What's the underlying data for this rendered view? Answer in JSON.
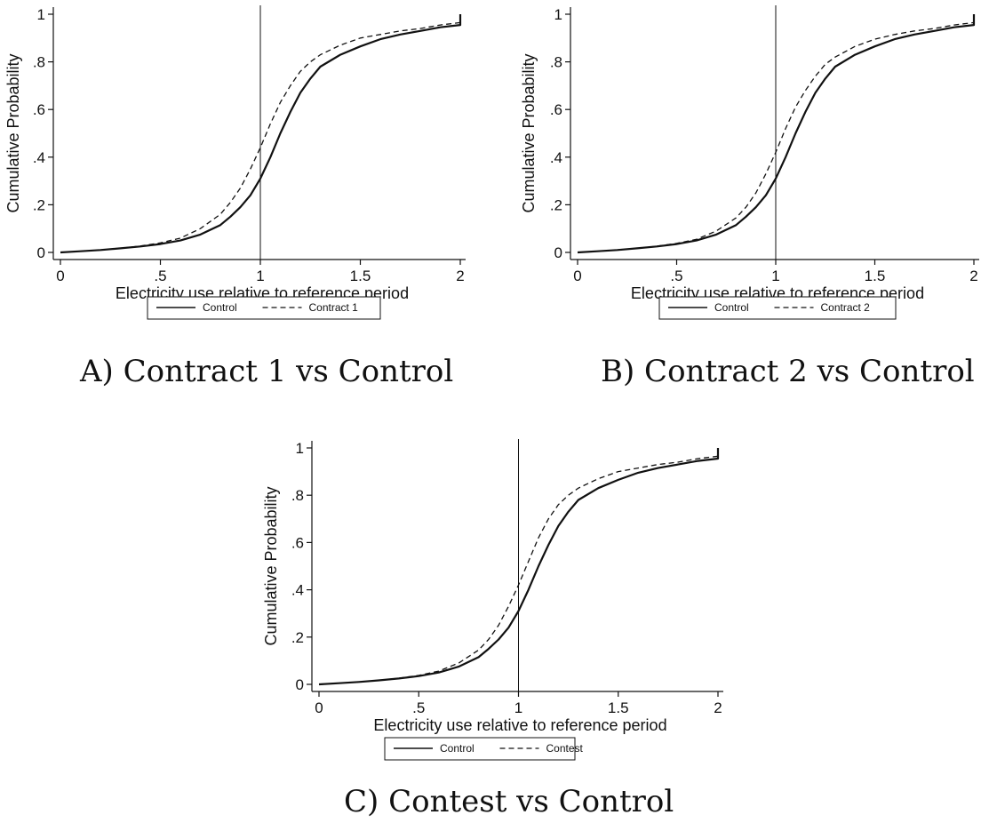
{
  "figure": {
    "panels": [
      {
        "caption": "A) Contract 1 vs Control",
        "chart_index": 0
      },
      {
        "caption": "B) Contract 2 vs Control",
        "chart_index": 1
      },
      {
        "caption": "C) Contest vs Control",
        "chart_index": 2
      }
    ]
  },
  "chart_data": [
    {
      "type": "line",
      "title": "",
      "xlabel": "Electricity use relative to reference period",
      "ylabel": "Cumulative Probability",
      "xlim": [
        0,
        2
      ],
      "ylim": [
        0,
        1
      ],
      "xticks": [
        "0",
        ".5",
        "1",
        "1.5",
        "2"
      ],
      "yticks": [
        "0",
        ".2",
        ".4",
        ".6",
        ".8",
        "1"
      ],
      "reference_line_x": 1,
      "legend_position": "bottom",
      "grid": false,
      "series": [
        {
          "name": "Control",
          "style": "solid",
          "x": [
            0,
            0.1,
            0.2,
            0.3,
            0.4,
            0.5,
            0.6,
            0.7,
            0.8,
            0.85,
            0.9,
            0.95,
            1.0,
            1.05,
            1.1,
            1.15,
            1.2,
            1.25,
            1.3,
            1.4,
            1.5,
            1.6,
            1.7,
            1.8,
            1.9,
            2.0,
            2.0
          ],
          "y": [
            0,
            0.005,
            0.01,
            0.017,
            0.025,
            0.035,
            0.05,
            0.075,
            0.115,
            0.15,
            0.19,
            0.24,
            0.31,
            0.4,
            0.5,
            0.59,
            0.67,
            0.73,
            0.78,
            0.83,
            0.865,
            0.895,
            0.915,
            0.93,
            0.945,
            0.955,
            1.0
          ]
        },
        {
          "name": "Contract 1",
          "style": "dashed",
          "x": [
            0,
            0.1,
            0.2,
            0.3,
            0.4,
            0.5,
            0.6,
            0.7,
            0.8,
            0.85,
            0.9,
            0.95,
            1.0,
            1.05,
            1.1,
            1.15,
            1.2,
            1.25,
            1.3,
            1.4,
            1.5,
            1.6,
            1.7,
            1.8,
            1.9,
            2.0,
            2.0
          ],
          "y": [
            0,
            0.005,
            0.01,
            0.017,
            0.027,
            0.04,
            0.06,
            0.1,
            0.16,
            0.21,
            0.27,
            0.35,
            0.44,
            0.54,
            0.63,
            0.7,
            0.76,
            0.8,
            0.83,
            0.87,
            0.9,
            0.915,
            0.93,
            0.94,
            0.955,
            0.965,
            1.0
          ]
        }
      ]
    },
    {
      "type": "line",
      "title": "",
      "xlabel": "Electricity use relative to reference period",
      "ylabel": "Cumulative Probability",
      "xlim": [
        0,
        2
      ],
      "ylim": [
        0,
        1
      ],
      "xticks": [
        "0",
        ".5",
        "1",
        "1.5",
        "2"
      ],
      "yticks": [
        "0",
        ".2",
        ".4",
        ".6",
        ".8",
        "1"
      ],
      "reference_line_x": 1,
      "legend_position": "bottom",
      "grid": false,
      "series": [
        {
          "name": "Control",
          "style": "solid",
          "x": [
            0,
            0.1,
            0.2,
            0.3,
            0.4,
            0.5,
            0.6,
            0.7,
            0.8,
            0.85,
            0.9,
            0.95,
            1.0,
            1.05,
            1.1,
            1.15,
            1.2,
            1.25,
            1.3,
            1.4,
            1.5,
            1.6,
            1.7,
            1.8,
            1.9,
            2.0,
            2.0
          ],
          "y": [
            0,
            0.005,
            0.01,
            0.017,
            0.025,
            0.035,
            0.05,
            0.075,
            0.115,
            0.15,
            0.19,
            0.24,
            0.31,
            0.4,
            0.5,
            0.59,
            0.67,
            0.73,
            0.78,
            0.83,
            0.865,
            0.895,
            0.915,
            0.93,
            0.945,
            0.955,
            1.0
          ]
        },
        {
          "name": "Contract 2",
          "style": "dashed",
          "x": [
            0,
            0.1,
            0.2,
            0.3,
            0.4,
            0.5,
            0.6,
            0.7,
            0.8,
            0.85,
            0.9,
            0.95,
            1.0,
            1.05,
            1.1,
            1.15,
            1.2,
            1.25,
            1.3,
            1.4,
            1.5,
            1.6,
            1.7,
            1.8,
            1.9,
            2.0,
            2.0
          ],
          "y": [
            0,
            0.005,
            0.01,
            0.017,
            0.026,
            0.038,
            0.055,
            0.09,
            0.145,
            0.19,
            0.25,
            0.33,
            0.42,
            0.52,
            0.61,
            0.68,
            0.74,
            0.79,
            0.82,
            0.865,
            0.895,
            0.915,
            0.93,
            0.94,
            0.955,
            0.965,
            1.0
          ]
        }
      ]
    },
    {
      "type": "line",
      "title": "",
      "xlabel": "Electricity use relative to reference period",
      "ylabel": "Cumulative Probability",
      "xlim": [
        0,
        2
      ],
      "ylim": [
        0,
        1
      ],
      "xticks": [
        "0",
        ".5",
        "1",
        "1.5",
        "2"
      ],
      "yticks": [
        "0",
        ".2",
        ".4",
        ".6",
        ".8",
        "1"
      ],
      "reference_line_x": 1,
      "legend_position": "bottom",
      "grid": false,
      "series": [
        {
          "name": "Control",
          "style": "solid",
          "x": [
            0,
            0.1,
            0.2,
            0.3,
            0.4,
            0.5,
            0.6,
            0.7,
            0.8,
            0.85,
            0.9,
            0.95,
            1.0,
            1.05,
            1.1,
            1.15,
            1.2,
            1.25,
            1.3,
            1.4,
            1.5,
            1.6,
            1.7,
            1.8,
            1.9,
            2.0,
            2.0
          ],
          "y": [
            0,
            0.005,
            0.01,
            0.017,
            0.025,
            0.035,
            0.05,
            0.075,
            0.115,
            0.15,
            0.19,
            0.24,
            0.31,
            0.4,
            0.5,
            0.59,
            0.67,
            0.73,
            0.78,
            0.83,
            0.865,
            0.895,
            0.915,
            0.93,
            0.945,
            0.955,
            1.0
          ]
        },
        {
          "name": "Contest",
          "style": "dashed",
          "x": [
            0,
            0.1,
            0.2,
            0.3,
            0.4,
            0.5,
            0.6,
            0.7,
            0.8,
            0.85,
            0.9,
            0.95,
            1.0,
            1.05,
            1.1,
            1.15,
            1.2,
            1.25,
            1.3,
            1.4,
            1.5,
            1.6,
            1.7,
            1.8,
            1.9,
            2.0,
            2.0
          ],
          "y": [
            0,
            0.005,
            0.01,
            0.017,
            0.026,
            0.038,
            0.056,
            0.09,
            0.145,
            0.19,
            0.25,
            0.33,
            0.42,
            0.52,
            0.62,
            0.7,
            0.76,
            0.8,
            0.83,
            0.87,
            0.9,
            0.915,
            0.93,
            0.94,
            0.955,
            0.965,
            1.0
          ]
        }
      ]
    }
  ]
}
